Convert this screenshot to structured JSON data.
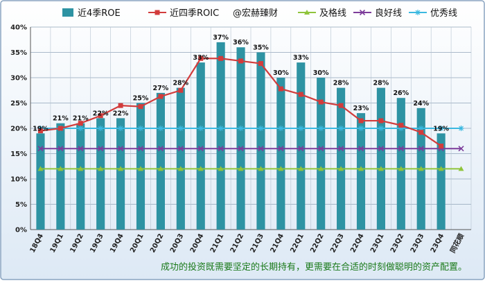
{
  "chart_data": {
    "type": "bar",
    "categories": [
      "18Q4",
      "19Q1",
      "19Q2",
      "19Q3",
      "19Q4",
      "20Q1",
      "20Q2",
      "20Q3",
      "20Q4",
      "21Q1",
      "21Q2",
      "21Q3",
      "21Q4",
      "22Q1",
      "22Q2",
      "22Q3",
      "22Q4",
      "23Q1",
      "23Q2",
      "23Q3",
      "23Q4",
      "同花顺"
    ],
    "series": [
      {
        "name": "近4季ROE",
        "kind": "bar",
        "color": "#2e93a3",
        "values": [
          19,
          21,
          21,
          22,
          22,
          25,
          27,
          28,
          33,
          37,
          36,
          35,
          30,
          33,
          30,
          28,
          23,
          28,
          26,
          24,
          19,
          null
        ],
        "labels": [
          "19%",
          "21%",
          "21%",
          "22%",
          "22%",
          "25%",
          "27%",
          "28%",
          "33%",
          "37%",
          "36%",
          "35%",
          "30%",
          "33%",
          "30%",
          "28%",
          "23%",
          "28%",
          "26%",
          "24%",
          "19%",
          ""
        ]
      },
      {
        "name": "近四季ROIC",
        "kind": "line",
        "color": "#d23c3c",
        "marker": "square",
        "values": [
          19.5,
          20.0,
          21.0,
          22.5,
          24.5,
          24.3,
          26.3,
          27.5,
          33.8,
          33.8,
          33.3,
          32.8,
          27.8,
          26.7,
          25.2,
          24.5,
          21.5,
          21.5,
          20.6,
          19.2,
          16.5,
          null
        ]
      },
      {
        "name": "@宏赫臻财",
        "kind": "text"
      },
      {
        "name": "及格线",
        "kind": "line",
        "color": "#8fc43b",
        "marker": "triangle",
        "constant": 12
      },
      {
        "name": "良好线",
        "kind": "line",
        "color": "#7c3c9a",
        "marker": "x",
        "constant": 16
      },
      {
        "name": "优秀线",
        "kind": "line",
        "color": "#3ab8e0",
        "marker": "star",
        "constant": 20
      }
    ],
    "yticks": [
      "0%",
      "5%",
      "10%",
      "15%",
      "20%",
      "25%",
      "30%",
      "35%",
      "40%"
    ],
    "ylim": [
      0,
      40
    ],
    "grid": true,
    "legend": "top"
  },
  "footer_text": "成功的投资既需要坚定的长期持有，更需要在合适的时刻做聪明的资产配置。"
}
